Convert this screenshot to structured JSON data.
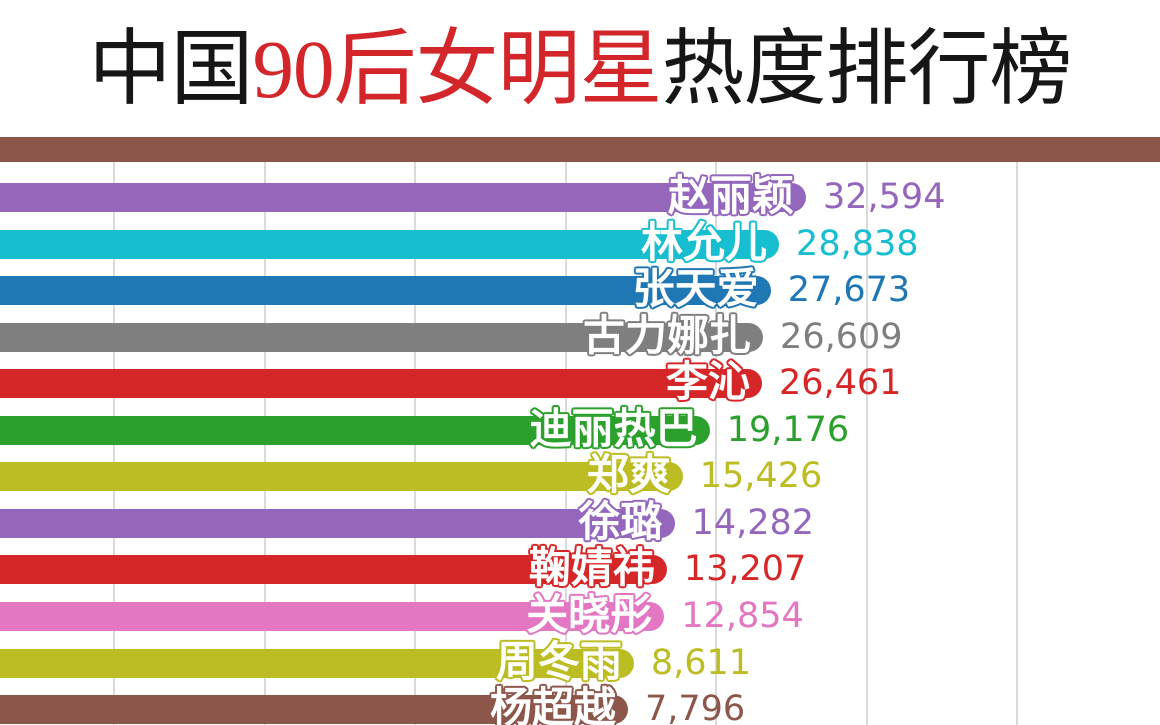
{
  "title": {
    "part1": "中国",
    "part2": "90后女明星",
    "part3": "热度排行榜",
    "accent_color": "#d3262a",
    "text_color": "#161616"
  },
  "top_band_color": "#8c564b",
  "chart_data": {
    "type": "bar",
    "orientation": "horizontal",
    "title": "中国90后女明星热度排行榜",
    "categories": [
      "赵丽颖",
      "林允儿",
      "张天爱",
      "古力娜扎",
      "李沁",
      "迪丽热巴",
      "郑爽",
      "徐璐",
      "鞠婧祎",
      "关晓彤",
      "周冬雨",
      "杨超越"
    ],
    "values": [
      32594,
      28838,
      27673,
      26609,
      26461,
      19176,
      15426,
      14282,
      13207,
      12854,
      8611,
      7796
    ],
    "value_labels": [
      "32,594",
      "28,838",
      "27,673",
      "26,609",
      "26,461",
      "19,176",
      "15,426",
      "14,282",
      "13,207",
      "12,854",
      "8,611",
      "7,796"
    ],
    "bar_colors": [
      "#9467bd",
      "#17becf",
      "#1f77b4",
      "#7f7f7f",
      "#d62728",
      "#2ca02c",
      "#bcbd22",
      "#9467bd",
      "#d62728",
      "#e377c2",
      "#bcbd22",
      "#8c564b"
    ],
    "xlabel": "",
    "ylabel": "",
    "grid": true,
    "legend": false,
    "bar_label_style": "white-text-with-bar-color-outline-inside-bar-end",
    "value_label_style": "bar-color-text-after-bar"
  }
}
